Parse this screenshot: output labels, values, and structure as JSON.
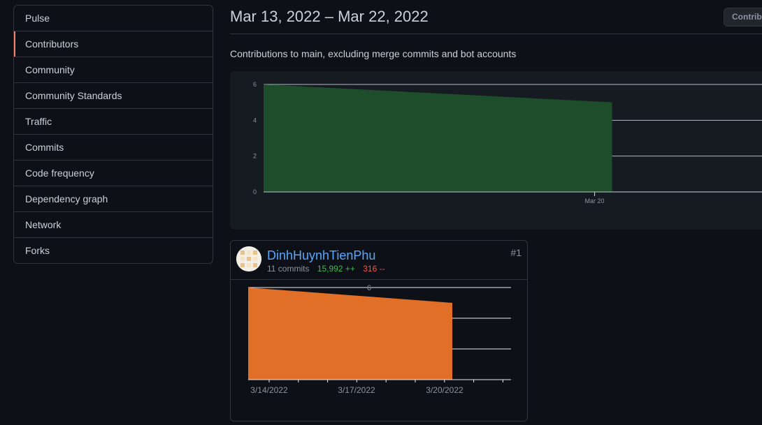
{
  "sidebar": {
    "items": [
      {
        "label": "Pulse",
        "name": "sidebar-item-pulse",
        "selected": false
      },
      {
        "label": "Contributors",
        "name": "sidebar-item-contributors",
        "selected": true
      },
      {
        "label": "Community",
        "name": "sidebar-item-community",
        "selected": false
      },
      {
        "label": "Community Standards",
        "name": "sidebar-item-community-standards",
        "selected": false
      },
      {
        "label": "Traffic",
        "name": "sidebar-item-traffic",
        "selected": false
      },
      {
        "label": "Commits",
        "name": "sidebar-item-commits",
        "selected": false
      },
      {
        "label": "Code frequency",
        "name": "sidebar-item-code-frequency",
        "selected": false
      },
      {
        "label": "Dependency graph",
        "name": "sidebar-item-dependency-graph",
        "selected": false
      },
      {
        "label": "Network",
        "name": "sidebar-item-network",
        "selected": false
      },
      {
        "label": "Forks",
        "name": "sidebar-item-forks",
        "selected": false
      }
    ]
  },
  "header": {
    "date_range": "Mar 13, 2022 – Mar 22, 2022",
    "select_label": "Contributions",
    "subtitle": "Contributions to main, excluding merge commits and bot accounts"
  },
  "colors": {
    "background": "#0d1117",
    "panel": "#161b22",
    "border": "#30363d",
    "main_area_fill": "#1e4d2b",
    "contributor_area_fill": "#e16f28",
    "link": "#58a6ff",
    "additions": "#3fb950",
    "deletions": "#f85149",
    "selected_accent": "#f78166"
  },
  "contributor": {
    "name": "DinhHuynhTienPhu",
    "commits": "11 commits",
    "additions": "15,992 ++",
    "deletions": "316 --",
    "rank": "#1",
    "avatar_icon": "identicon-avatar"
  },
  "chart_data": [
    {
      "type": "area",
      "x": [
        "2022-03-13",
        "2022-03-20"
      ],
      "y": [
        6,
        5
      ],
      "ylim": [
        0,
        6
      ],
      "yticks": [
        "0",
        "2",
        "4",
        "6"
      ],
      "xticks": [
        "Mar 20"
      ],
      "grid": true
    },
    {
      "type": "area",
      "x": [
        "2022-03-13",
        "2022-03-20"
      ],
      "y": [
        6,
        5
      ],
      "ylim": [
        0,
        6
      ],
      "yticks": [
        "6"
      ],
      "xticks": [
        "3/14/2022",
        "3/17/2022",
        "3/20/2022"
      ],
      "grid": true
    }
  ]
}
